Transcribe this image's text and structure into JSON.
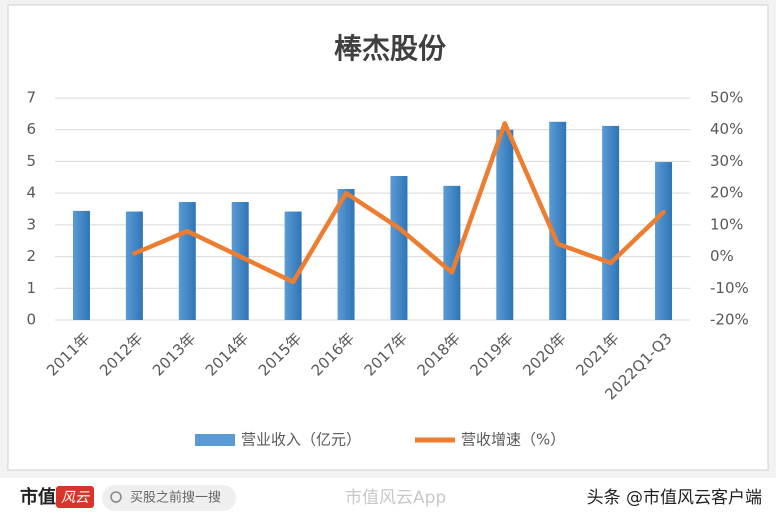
{
  "chart_data": {
    "type": "bar-line",
    "title": "棒杰股份",
    "categories": [
      "2011年",
      "2012年",
      "2013年",
      "2014年",
      "2015年",
      "2016年",
      "2017年",
      "2018年",
      "2019年",
      "2020年",
      "2021年",
      "2022Q1-Q3"
    ],
    "series": [
      {
        "name": "营业收入（亿元）",
        "color": "#5b9bd5",
        "type": "bar",
        "values": [
          3.44,
          3.42,
          3.72,
          3.72,
          3.42,
          4.13,
          4.54,
          4.23,
          6.0,
          6.25,
          6.12,
          4.98
        ]
      },
      {
        "name": "营收增速（%）",
        "color": "#ed7d31",
        "type": "line",
        "axis": "y2",
        "values": [
          null,
          1,
          8,
          0,
          -8,
          20,
          9,
          -5,
          42,
          4,
          -2,
          14
        ]
      }
    ],
    "ylim": [
      0,
      7
    ],
    "yticks": [
      0,
      1,
      2,
      3,
      4,
      5,
      6,
      7
    ],
    "y2lim": [
      -20,
      50
    ],
    "y2ticks": [
      {
        "value": -20,
        "label": "-20%"
      },
      {
        "value": -10,
        "label": "-10%"
      },
      {
        "value": 0,
        "label": "0%"
      },
      {
        "value": 10,
        "label": "10%"
      },
      {
        "value": 20,
        "label": "20%"
      },
      {
        "value": 30,
        "label": "30%"
      },
      {
        "value": 40,
        "label": "40%"
      },
      {
        "value": 50,
        "label": "50%"
      }
    ],
    "grid": true,
    "legend": "bottom"
  },
  "footer": {
    "brand": "市值",
    "logo": "风云",
    "search": "买股之前搜一搜",
    "watermark": "市值风云App",
    "source": "头条 @市值风云客户端"
  }
}
